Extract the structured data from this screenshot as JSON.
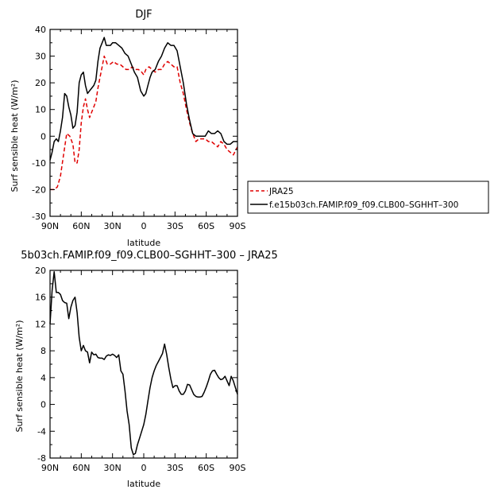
{
  "chart_data": [
    {
      "type": "line",
      "title": "DJF",
      "xlabel": "latitude",
      "ylabel": "Surf sensible heat (W/m²)",
      "ylim": [
        -30,
        40
      ],
      "yticks": [
        -30,
        -20,
        -10,
        0,
        10,
        20,
        30,
        40
      ],
      "xlim": [
        90,
        -90
      ],
      "xticks": [
        90,
        60,
        30,
        0,
        -30,
        -60,
        -90
      ],
      "xtick_labels": [
        "90N",
        "60N",
        "30N",
        "0",
        "30S",
        "60S",
        "90S"
      ],
      "legend_position": "right",
      "series": [
        {
          "name": "JRA25",
          "color": "#e00000",
          "dash": true,
          "x": [
            90,
            86,
            83,
            80,
            77,
            74,
            71,
            68,
            66,
            64,
            62,
            60,
            58,
            56,
            54,
            52,
            50,
            48,
            46,
            44,
            42,
            40,
            38,
            35,
            32,
            29,
            26,
            23,
            20,
            17,
            14,
            11,
            8,
            5,
            2,
            0,
            -2,
            -5,
            -8,
            -11,
            -14,
            -17,
            -20,
            -23,
            -26,
            -29,
            -32,
            -35,
            -38,
            -41,
            -44,
            -47,
            -50,
            -53,
            -56,
            -59,
            -62,
            -65,
            -68,
            -71,
            -74,
            -77,
            -80,
            -83,
            -86,
            -90
          ],
          "y": [
            -20,
            -20,
            -19,
            -15,
            -7,
            1,
            0,
            -3,
            -10,
            -10,
            -5,
            5,
            11,
            14,
            10,
            7,
            9,
            11,
            13,
            18,
            22,
            26,
            30,
            27,
            27,
            28,
            27,
            27,
            26,
            25,
            25,
            26,
            25,
            25,
            24,
            23,
            25,
            26,
            25,
            24,
            25,
            25,
            27,
            28,
            27,
            26,
            26,
            20,
            16,
            10,
            5,
            1,
            -2,
            -1,
            -1,
            -1,
            -2,
            -2,
            -3,
            -4,
            -2,
            -3,
            -5,
            -6,
            -7,
            -4
          ]
        },
        {
          "name": "f.e15b03ch.FAMIP.f09_f09.CLB00–SGHHT–300",
          "color": "#000000",
          "dash": false,
          "x": [
            90,
            88,
            86,
            84,
            82,
            80,
            78,
            76,
            74,
            72,
            70,
            68,
            66,
            64,
            62,
            60,
            58,
            56,
            54,
            52,
            50,
            48,
            46,
            44,
            42,
            40,
            38,
            36,
            34,
            32,
            30,
            27,
            24,
            21,
            18,
            15,
            12,
            9,
            6,
            3,
            0,
            -2,
            -4,
            -6,
            -8,
            -11,
            -14,
            -17,
            -20,
            -23,
            -26,
            -29,
            -32,
            -35,
            -38,
            -41,
            -44,
            -47,
            -50,
            -53,
            -56,
            -59,
            -62,
            -65,
            -68,
            -71,
            -74,
            -77,
            -80,
            -83,
            -86,
            -90
          ],
          "y": [
            -9,
            -6,
            -2,
            -1,
            -2,
            2,
            7,
            16,
            15,
            11,
            8,
            3,
            4,
            9,
            20,
            23,
            24,
            19,
            16,
            17,
            18,
            19,
            21,
            28,
            33,
            35,
            37,
            34,
            34,
            34,
            35,
            35,
            34,
            33,
            31,
            30,
            27,
            24,
            22,
            17,
            15,
            16,
            19,
            22,
            24,
            25,
            28,
            30,
            33,
            35,
            34,
            34,
            32,
            26,
            20,
            12,
            6,
            1,
            0,
            0,
            0,
            0,
            2,
            1,
            1,
            2,
            1,
            -2,
            -3,
            -3,
            -2,
            -2
          ]
        }
      ]
    },
    {
      "type": "line",
      "title": "5b03ch.FAMIP.f09_f09.CLB00–SGHHT–300 – JRA25",
      "xlabel": "latitude",
      "ylabel": "Surf sensible heat (W/m²)",
      "ylim": [
        -8,
        20
      ],
      "yticks": [
        -8,
        -4,
        0,
        4,
        8,
        12,
        16,
        20
      ],
      "xlim": [
        90,
        -90
      ],
      "xticks": [
        90,
        60,
        30,
        0,
        -30,
        -60,
        -90
      ],
      "xtick_labels": [
        "90N",
        "60N",
        "30N",
        "0",
        "30S",
        "60S",
        "90S"
      ],
      "series": [
        {
          "color": "#000000",
          "dash": false,
          "x": [
            90,
            88,
            86,
            84,
            82,
            80,
            78,
            76,
            74,
            72,
            70,
            68,
            66,
            64,
            62,
            60,
            58,
            56,
            54,
            52,
            50,
            48,
            46,
            44,
            42,
            40,
            38,
            36,
            34,
            32,
            30,
            28,
            26,
            24,
            22,
            20,
            18,
            16,
            14,
            12,
            10,
            8,
            6,
            4,
            2,
            0,
            -2,
            -4,
            -6,
            -8,
            -10,
            -12,
            -14,
            -16,
            -18,
            -20,
            -22,
            -24,
            -26,
            -28,
            -30,
            -32,
            -34,
            -36,
            -38,
            -40,
            -42,
            -44,
            -46,
            -48,
            -50,
            -52,
            -54,
            -56,
            -58,
            -60,
            -62,
            -64,
            -66,
            -68,
            -70,
            -72,
            -74,
            -76,
            -78,
            -80,
            -82,
            -84,
            -86,
            -88,
            -90
          ],
          "y": [
            12,
            17,
            19.8,
            16.7,
            16.7,
            16.4,
            15.5,
            15.2,
            15.1,
            12.8,
            14.5,
            15.5,
            16,
            13.7,
            10,
            8,
            8.8,
            8,
            7.8,
            6.2,
            7.8,
            7.4,
            7.5,
            7,
            6.9,
            6.9,
            6.7,
            7.2,
            7.4,
            7.3,
            7.5,
            7.3,
            7,
            7.4,
            5,
            4.5,
            2,
            -1,
            -3,
            -6.5,
            -7.5,
            -7.3,
            -6,
            -5,
            -4,
            -3,
            -1.5,
            0.5,
            2.5,
            4,
            5,
            5.8,
            6.4,
            7,
            7.6,
            9,
            7.5,
            5.5,
            3.8,
            2.5,
            2.8,
            2.8,
            2,
            1.5,
            1.5,
            2,
            3,
            2.9,
            2.2,
            1.5,
            1.2,
            1.1,
            1.1,
            1.2,
            1.8,
            2.6,
            3.5,
            4.5,
            5,
            5.1,
            4.5,
            4,
            3.7,
            3.8,
            4.2,
            3.5,
            2.8,
            4.2,
            3.5,
            2.5,
            1.5
          ]
        }
      ]
    }
  ]
}
